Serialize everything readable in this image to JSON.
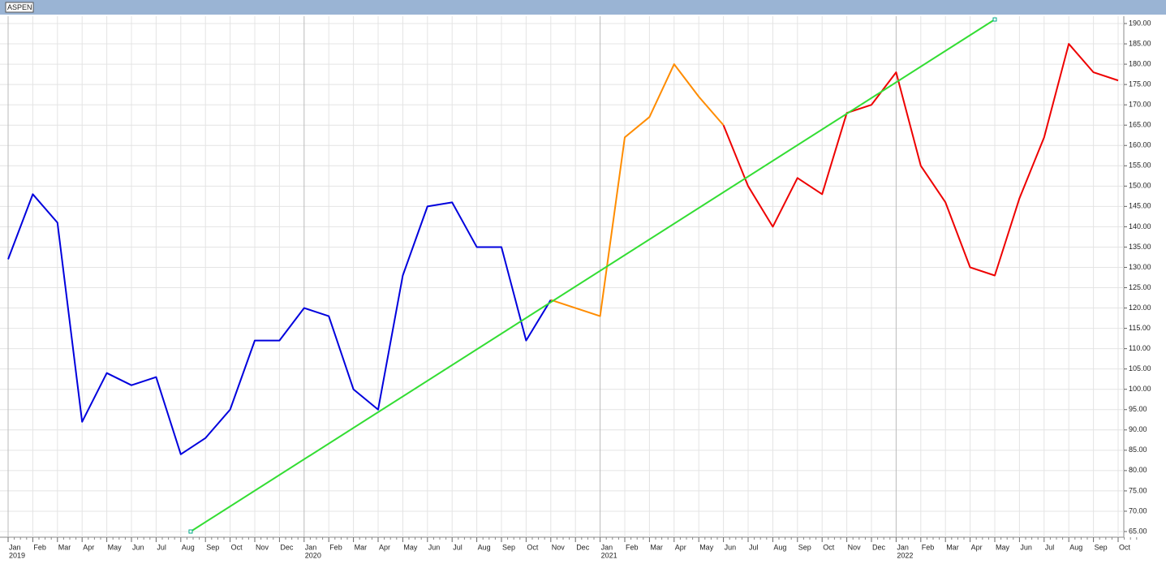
{
  "chart_data": {
    "type": "line",
    "title": "ASPEN",
    "categories": [
      "Jan",
      "Feb",
      "Mar",
      "Apr",
      "May",
      "Jun",
      "Jul",
      "Aug",
      "Sep",
      "Oct",
      "Nov",
      "Dec",
      "Jan",
      "Feb",
      "Mar",
      "Apr",
      "May",
      "Jun",
      "Jul",
      "Aug",
      "Sep",
      "Oct",
      "Nov",
      "Dec",
      "Jan",
      "Feb",
      "Mar",
      "Apr",
      "May",
      "Jun",
      "Jul",
      "Aug",
      "Sep",
      "Oct",
      "Nov",
      "Dec",
      "Jan",
      "Feb",
      "Mar",
      "Apr",
      "May",
      "Jun",
      "Jul",
      "Aug",
      "Sep",
      "Oct"
    ],
    "years": [
      "2019",
      "2020",
      "2021",
      "2022"
    ],
    "series": [
      {
        "color": "#0000dd",
        "values": [
          132,
          148,
          141,
          92,
          104,
          101,
          103,
          84,
          88,
          95,
          112,
          112,
          120,
          118,
          100,
          95,
          128,
          145,
          146,
          135,
          135,
          112,
          122,
          null,
          null,
          null,
          null,
          null,
          null,
          null,
          null,
          null,
          null,
          null,
          null,
          null,
          null,
          null,
          null,
          null,
          null,
          null,
          null,
          null,
          null,
          null
        ]
      },
      {
        "color": "#ff8c00",
        "values": [
          null,
          null,
          null,
          null,
          null,
          null,
          null,
          null,
          null,
          null,
          null,
          null,
          null,
          null,
          null,
          null,
          null,
          null,
          null,
          null,
          null,
          null,
          122,
          120,
          118,
          162,
          167,
          180,
          172,
          165,
          null,
          null,
          null,
          null,
          null,
          null,
          null,
          null,
          null,
          null,
          null,
          null,
          null,
          null,
          null,
          null
        ]
      },
      {
        "color": "#ee0000",
        "values": [
          null,
          null,
          null,
          null,
          null,
          null,
          null,
          null,
          null,
          null,
          null,
          null,
          null,
          null,
          null,
          null,
          null,
          null,
          null,
          null,
          null,
          null,
          null,
          null,
          null,
          null,
          null,
          null,
          null,
          165,
          150,
          140,
          152,
          148,
          168,
          170,
          178,
          155,
          146,
          130,
          128,
          147,
          162,
          185,
          178,
          176
        ]
      }
    ],
    "trendline": {
      "color": "#33dd33",
      "x": [
        7.4,
        40
      ],
      "values": [
        65,
        191
      ]
    },
    "ylim": [
      63.6,
      191.8
    ],
    "yticks": [
      {
        "value": 65,
        "label": "65.00"
      },
      {
        "value": 70,
        "label": "70.00"
      },
      {
        "value": 75,
        "label": "75.00"
      },
      {
        "value": 80,
        "label": "80.00"
      },
      {
        "value": 85,
        "label": "85.00"
      },
      {
        "value": 90,
        "label": "90.00"
      },
      {
        "value": 95,
        "label": "95.00"
      },
      {
        "value": 100,
        "label": "100.00"
      },
      {
        "value": 105,
        "label": "105.00"
      },
      {
        "value": 110,
        "label": "110.00"
      },
      {
        "value": 115,
        "label": "115.00"
      },
      {
        "value": 120,
        "label": "120.00"
      },
      {
        "value": 125,
        "label": "125.00"
      },
      {
        "value": 130,
        "label": "130.00"
      },
      {
        "value": 135,
        "label": "135.00"
      },
      {
        "value": 140,
        "label": "140.00"
      },
      {
        "value": 145,
        "label": "145.00"
      },
      {
        "value": 150,
        "label": "150.00"
      },
      {
        "value": 155,
        "label": "155.00"
      },
      {
        "value": 160,
        "label": "160.00"
      },
      {
        "value": 165,
        "label": "165.00"
      },
      {
        "value": 170,
        "label": "170.00"
      },
      {
        "value": 175,
        "label": "175.00"
      },
      {
        "value": 180,
        "label": "180.00"
      },
      {
        "value": 185,
        "label": "185.00"
      },
      {
        "value": 190,
        "label": "190.00"
      }
    ],
    "grid": true
  }
}
